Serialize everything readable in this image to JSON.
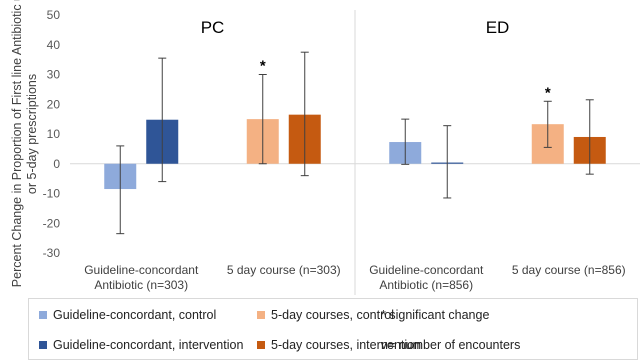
{
  "chart_data": {
    "type": "bar",
    "ylabel": "Percent Change in Proportion of First line Antibiotic use or 5-day prescriptions",
    "ylim": [
      -30,
      50
    ],
    "yticks": [
      -30,
      -20,
      -10,
      0,
      10,
      20,
      30,
      40,
      50
    ],
    "grid": false,
    "panels": [
      {
        "title": "PC",
        "groups": [
          {
            "label_lines": [
              "Guideline-concordant",
              "Antibiotic (n=303)"
            ],
            "bars": [
              {
                "series": "Guideline-concordant, control",
                "value": -8.5,
                "err_low": -23.5,
                "err_high": 6,
                "significant": false
              },
              {
                "series": "Guideline-concordant, intervention",
                "value": 14.8,
                "err_low": -6,
                "err_high": 35.5,
                "significant": false
              }
            ]
          },
          {
            "label_lines": [
              "5 day course (n=303)"
            ],
            "bars": [
              {
                "series": "5-day courses, control",
                "value": 15,
                "err_low": 0,
                "err_high": 30,
                "significant": true
              },
              {
                "series": "5-day courses, intervention",
                "value": 16.5,
                "err_low": -4,
                "err_high": 37.5,
                "significant": false
              }
            ]
          }
        ]
      },
      {
        "title": "ED",
        "groups": [
          {
            "label_lines": [
              "Guideline-concordant",
              "Antibiotic (n=856)"
            ],
            "bars": [
              {
                "series": "Guideline-concordant, control",
                "value": 7.3,
                "err_low": -0.2,
                "err_high": 15,
                "significant": false
              },
              {
                "series": "Guideline-concordant, intervention",
                "value": 0.4,
                "err_low": -11.5,
                "err_high": 12.8,
                "significant": false
              }
            ]
          },
          {
            "label_lines": [
              "5 day course (n=856)"
            ],
            "bars": [
              {
                "series": "5-day courses, control",
                "value": 13.3,
                "err_low": 5.5,
                "err_high": 21,
                "significant": true
              },
              {
                "series": "5-day courses, intervention",
                "value": 9,
                "err_low": -3.5,
                "err_high": 21.5,
                "significant": false
              }
            ]
          }
        ]
      }
    ],
    "significance_marker": "*",
    "series_colors": {
      "Guideline-concordant, control": "#8eaadb",
      "Guideline-concordant, intervention": "#2f5597",
      "5-day courses, control": "#f4b183",
      "5-day courses, intervention": "#c55a11"
    },
    "legend": [
      {
        "label": "Guideline-concordant, control",
        "swatch": "#8eaadb"
      },
      {
        "label": "5-day courses, control",
        "swatch": "#f4b183"
      },
      {
        "label": "* significant change",
        "swatch": null
      },
      {
        "label": "Guideline-concordant, intervention",
        "swatch": "#2f5597"
      },
      {
        "label": "5-day courses, intervention",
        "swatch": "#c55a11"
      },
      {
        "label": "n= number of encounters",
        "swatch": null
      }
    ]
  }
}
